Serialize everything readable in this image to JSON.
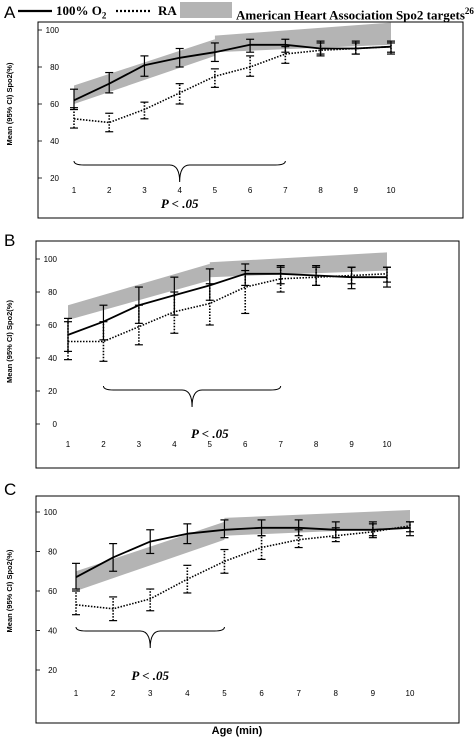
{
  "legend": {
    "solid_label": "100% O",
    "solid_sub": "2",
    "dotted_label": "RA",
    "band_label": "American Heart Association Spo2 targets",
    "band_sup": "26"
  },
  "colors": {
    "band": "#b4b4b4",
    "line": "#000000",
    "frame": "#000000"
  },
  "xlabel": "Age (min)",
  "chart_data": [
    {
      "panel": "A",
      "type": "line",
      "ylabel": "Mean (95% CI) Spo2(%)",
      "x": [
        1,
        2,
        3,
        4,
        5,
        6,
        7,
        8,
        9,
        10
      ],
      "ylim": [
        20,
        100
      ],
      "yticks": [
        20,
        40,
        60,
        80,
        100
      ],
      "series": [
        {
          "name": "100% O2",
          "style": "solid",
          "y": [
            62,
            71,
            81,
            85,
            88,
            92,
            92,
            90,
            90,
            91
          ],
          "ci_low": [
            57,
            66,
            75,
            80,
            83,
            88,
            88,
            87,
            87,
            87
          ],
          "ci_high": [
            68,
            77,
            86,
            90,
            93,
            95,
            95,
            94,
            94,
            94
          ]
        },
        {
          "name": "RA",
          "style": "dotted",
          "y": [
            52,
            50,
            57,
            66,
            75,
            80,
            87,
            89,
            90,
            91
          ],
          "ci_low": [
            47,
            45,
            52,
            60,
            69,
            75,
            82,
            86,
            87,
            88
          ],
          "ci_high": [
            58,
            55,
            61,
            71,
            79,
            86,
            91,
            93,
            93,
            93
          ]
        },
        {
          "name": "American Heart Association Spo2 targets",
          "style": "band",
          "segments": [
            [
              [
                1,
                60
              ],
              [
                1,
                70
              ],
              [
                5,
                95
              ],
              [
                5,
                86
              ]
            ],
            [
              [
                5,
                88
              ],
              [
                5,
                97
              ],
              [
                10,
                104
              ],
              [
                10,
                92
              ]
            ]
          ]
        }
      ],
      "brace": {
        "x_start": 1,
        "x_end": 7
      },
      "annotation": {
        "text": "P < .05",
        "x": 4
      }
    },
    {
      "panel": "B",
      "type": "line",
      "ylabel": "Mean (95% CI) Spo2(%)",
      "x": [
        1,
        2,
        3,
        4,
        5,
        6,
        7,
        8,
        9,
        10
      ],
      "ylim": [
        0,
        100
      ],
      "yticks": [
        0,
        20,
        40,
        60,
        80,
        100
      ],
      "series": [
        {
          "name": "100% O2",
          "style": "solid",
          "y": [
            54,
            62,
            72,
            78,
            84,
            91,
            91,
            90,
            89,
            89
          ],
          "ci_low": [
            44,
            51,
            61,
            66,
            75,
            84,
            85,
            84,
            82,
            83
          ],
          "ci_high": [
            64,
            72,
            83,
            89,
            94,
            97,
            96,
            96,
            95,
            95
          ]
        },
        {
          "name": "RA",
          "style": "dotted",
          "y": [
            50,
            50,
            59,
            68,
            73,
            83,
            88,
            89,
            90,
            91
          ],
          "ci_low": [
            39,
            38,
            48,
            55,
            60,
            67,
            80,
            84,
            85,
            86
          ],
          "ci_high": [
            62,
            62,
            72,
            80,
            85,
            93,
            95,
            95,
            95,
            95
          ]
        },
        {
          "name": "American Heart Association Spo2 targets",
          "style": "band",
          "segments": [
            [
              [
                1,
                63
              ],
              [
                1,
                72
              ],
              [
                5,
                97
              ],
              [
                5,
                87
              ]
            ],
            [
              [
                5,
                89
              ],
              [
                5,
                98
              ],
              [
                10,
                104
              ],
              [
                10,
                93
              ]
            ]
          ]
        }
      ],
      "brace": {
        "x_start": 2,
        "x_end": 7
      },
      "annotation": {
        "text": "P < .05",
        "x": 5
      }
    },
    {
      "panel": "C",
      "type": "line",
      "ylabel": "Mean (95% CI) Spo2(%)",
      "x": [
        1,
        2,
        3,
        4,
        5,
        6,
        7,
        8,
        9,
        10
      ],
      "ylim": [
        20,
        100
      ],
      "yticks": [
        20,
        40,
        60,
        80,
        100
      ],
      "series": [
        {
          "name": "100% O2",
          "style": "solid",
          "y": [
            67,
            77,
            85,
            89,
            91,
            92,
            92,
            91,
            91,
            92
          ],
          "ci_low": [
            61,
            70,
            79,
            84,
            87,
            88,
            88,
            87,
            88,
            88
          ],
          "ci_high": [
            74,
            84,
            91,
            94,
            96,
            96,
            96,
            95,
            95,
            95
          ]
        },
        {
          "name": "RA",
          "style": "dotted",
          "y": [
            53,
            51,
            56,
            66,
            75,
            82,
            86,
            88,
            90,
            93
          ],
          "ci_low": [
            48,
            45,
            50,
            59,
            69,
            76,
            82,
            85,
            87,
            90
          ],
          "ci_high": [
            60,
            57,
            61,
            73,
            81,
            88,
            91,
            92,
            94,
            95
          ]
        },
        {
          "name": "American Heart Association Spo2 targets",
          "style": "band",
          "segments": [
            [
              [
                1,
                60
              ],
              [
                1,
                70
              ],
              [
                5,
                95
              ],
              [
                5,
                86
              ]
            ],
            [
              [
                5,
                88
              ],
              [
                5,
                97
              ],
              [
                10,
                101
              ],
              [
                10,
                92
              ]
            ]
          ]
        }
      ],
      "brace": {
        "x_start": 1,
        "x_end": 5
      },
      "annotation": {
        "text": "P < .05",
        "x": 3
      }
    }
  ]
}
